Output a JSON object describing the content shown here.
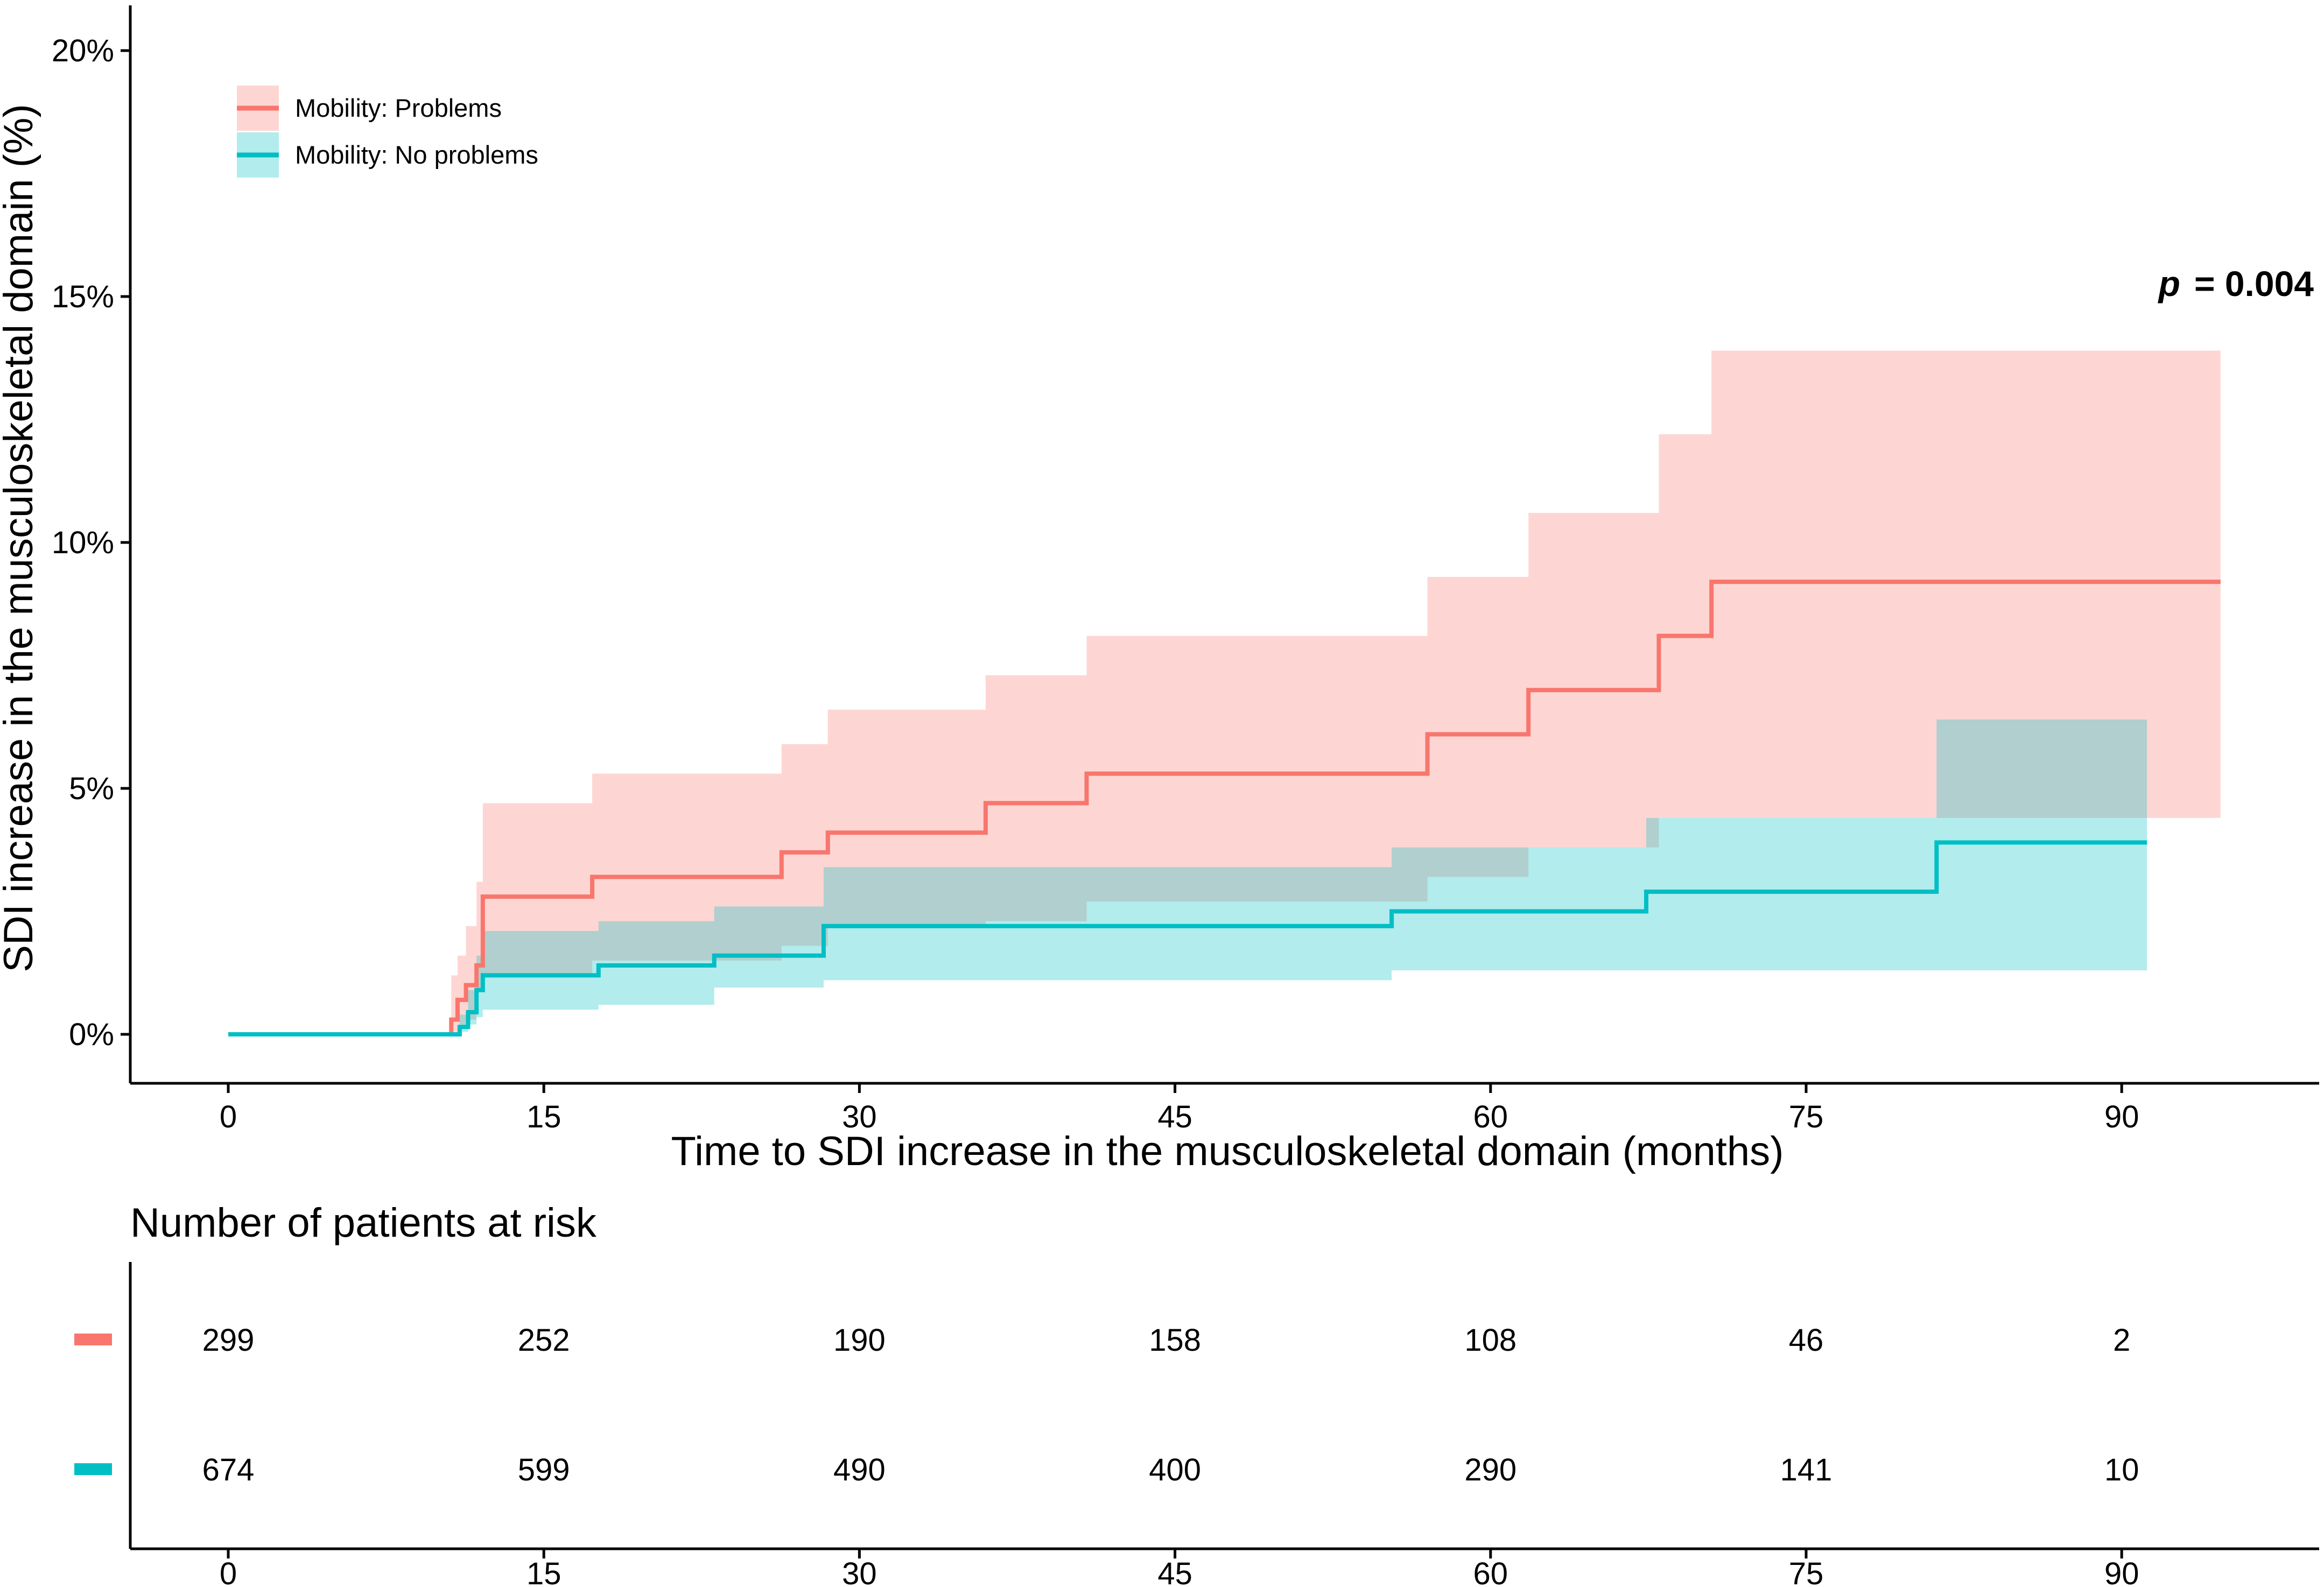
{
  "chart_data": {
    "type": "line",
    "subtype": "cumulative-incidence-step",
    "ylabel": "SDI increase in the musculoskeletal domain (%)",
    "xlabel": "Time to SDI increase in the musculoskeletal domain (months)",
    "xlim": [
      0,
      95
    ],
    "ylim": [
      0,
      20
    ],
    "xticks": [
      0,
      15,
      30,
      45,
      60,
      75,
      90
    ],
    "yticks": [
      0,
      5,
      10,
      15,
      20
    ],
    "ytick_labels": [
      "0%",
      "5%",
      "10%",
      "15%",
      "20%"
    ],
    "grid": false,
    "legend_position": "top-left",
    "p_value": {
      "label": "p",
      "text": "= 0.004"
    },
    "series": [
      {
        "name": "Mobility: Problems",
        "color": "#F8766D",
        "band_color": "#F8766D",
        "x": [
          0,
          10.6,
          10.9,
          11.3,
          11.8,
          12.1,
          17.3,
          26.3,
          28.5,
          36.0,
          40.8,
          57.0,
          61.8,
          68.0,
          70.5,
          94.7
        ],
        "y": [
          0,
          0.3,
          0.7,
          1.0,
          1.4,
          2.8,
          3.2,
          3.7,
          4.1,
          4.7,
          5.3,
          6.1,
          7.0,
          8.1,
          9.2,
          9.2
        ],
        "lower": [
          0,
          0,
          0.05,
          0.2,
          0.3,
          0.9,
          1.2,
          1.5,
          1.8,
          2.2,
          2.3,
          2.7,
          3.2,
          3.8,
          4.4,
          4.4
        ],
        "upper": [
          0,
          1.2,
          1.6,
          2.2,
          3.1,
          4.7,
          5.3,
          5.9,
          6.6,
          7.3,
          8.1,
          9.3,
          10.6,
          12.2,
          13.9,
          13.9
        ]
      },
      {
        "name": "Mobility: No problems",
        "color": "#00BFC4",
        "band_color": "#00BFC4",
        "x": [
          0,
          11.0,
          11.4,
          11.8,
          12.1,
          17.6,
          23.1,
          28.3,
          55.3,
          67.4,
          81.2,
          91.2
        ],
        "y": [
          0,
          0.15,
          0.45,
          0.9,
          1.2,
          1.4,
          1.6,
          2.2,
          2.5,
          2.9,
          3.9,
          3.9
        ],
        "lower": [
          0,
          0,
          0.05,
          0.2,
          0.35,
          0.5,
          0.6,
          0.95,
          1.1,
          1.3,
          1.3,
          1.3
        ],
        "upper": [
          0,
          0.4,
          0.9,
          1.6,
          2.1,
          2.3,
          2.6,
          3.4,
          3.8,
          4.4,
          6.4,
          6.4
        ]
      }
    ],
    "risk_table": {
      "title": "Number of patients at risk",
      "times": [
        0,
        15,
        30,
        45,
        60,
        75,
        90
      ],
      "rows": [
        {
          "color": "#F8766D",
          "values": [
            "299",
            "252",
            "190",
            "158",
            "108",
            "46",
            "2"
          ]
        },
        {
          "color": "#00BFC4",
          "values": [
            "674",
            "599",
            "490",
            "400",
            "290",
            "141",
            "10"
          ]
        }
      ]
    }
  }
}
